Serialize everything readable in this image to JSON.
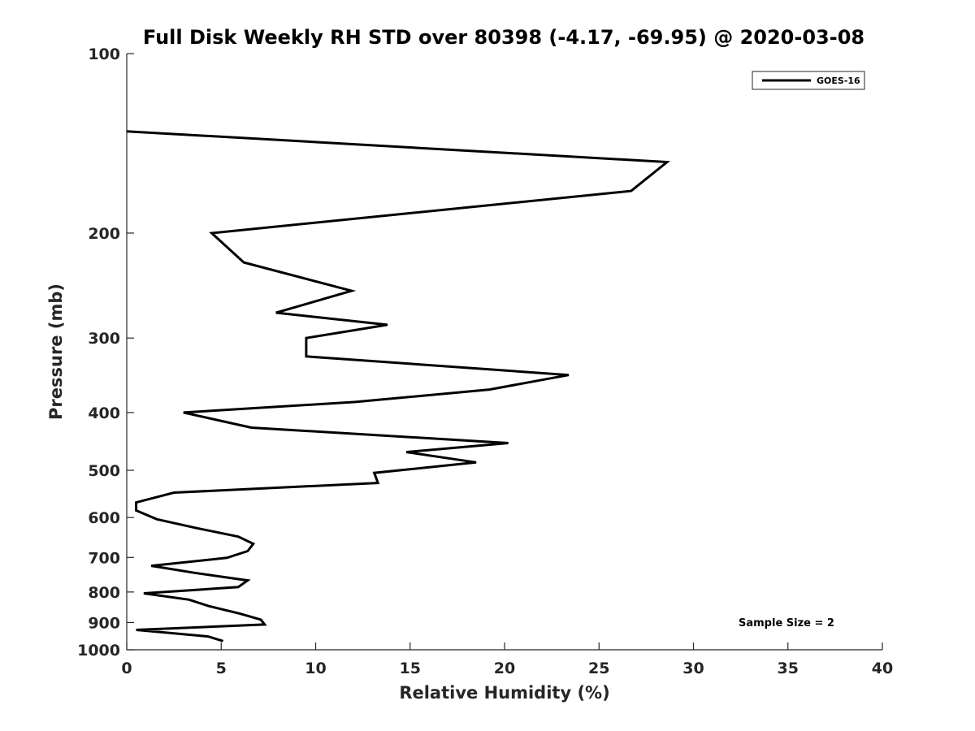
{
  "chart_data": {
    "type": "line",
    "title": "Full Disk Weekly RH STD over 80398 (-4.17, -69.95) @ 2020-03-08",
    "xlabel": "Relative Humidity (%)",
    "ylabel": "Pressure (mb)",
    "xlim": [
      0,
      40
    ],
    "ylim": [
      100,
      1000
    ],
    "y_scale": "log",
    "y_reversed": true,
    "grid": false,
    "x_ticks": [
      0,
      5,
      10,
      15,
      20,
      25,
      30,
      35,
      40
    ],
    "y_ticks": [
      100,
      200,
      300,
      400,
      500,
      600,
      700,
      800,
      900,
      1000
    ],
    "legend": {
      "position": "top-right",
      "entries": [
        "GOES-16"
      ]
    },
    "annotation": "Sample Size = 2",
    "series": [
      {
        "name": "GOES-16",
        "color": "#000000",
        "points": [
          [
            0.0,
            135
          ],
          [
            28.6,
            152
          ],
          [
            26.7,
            170
          ],
          [
            4.5,
            200
          ],
          [
            6.2,
            224
          ],
          [
            11.9,
            250
          ],
          [
            7.9,
            272
          ],
          [
            13.8,
            285
          ],
          [
            9.5,
            300
          ],
          [
            9.5,
            322
          ],
          [
            23.4,
            346
          ],
          [
            19.2,
            366
          ],
          [
            12.1,
            384
          ],
          [
            3.0,
            400
          ],
          [
            6.6,
            424
          ],
          [
            20.2,
            450
          ],
          [
            14.8,
            466
          ],
          [
            18.5,
            485
          ],
          [
            13.1,
            505
          ],
          [
            13.3,
            525
          ],
          [
            2.5,
            545
          ],
          [
            0.5,
            566
          ],
          [
            0.5,
            584
          ],
          [
            1.6,
            604
          ],
          [
            3.6,
            624
          ],
          [
            5.9,
            646
          ],
          [
            6.7,
            664
          ],
          [
            6.4,
            683
          ],
          [
            5.3,
            701
          ],
          [
            1.3,
            723
          ],
          [
            3.6,
            743
          ],
          [
            6.4,
            765
          ],
          [
            5.9,
            785
          ],
          [
            0.9,
            804
          ],
          [
            3.3,
            824
          ],
          [
            4.3,
            844
          ],
          [
            6.0,
            870
          ],
          [
            7.1,
            890
          ],
          [
            7.3,
            907
          ],
          [
            0.5,
            926
          ],
          [
            4.3,
            950
          ],
          [
            5.1,
            967
          ]
        ]
      }
    ]
  }
}
